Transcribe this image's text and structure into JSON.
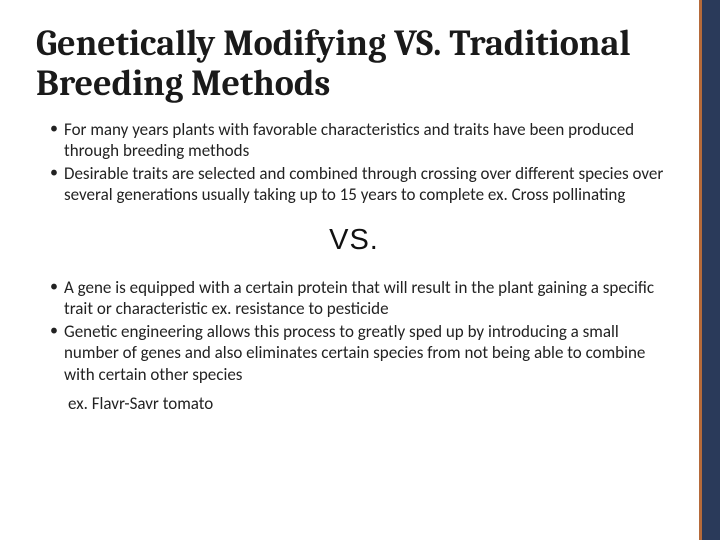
{
  "colors": {
    "side_bar": "#2a3a5a",
    "side_line": "#b56a3a",
    "title_color": "#1a1a1a",
    "body_text": "#222222",
    "background": "#ffffff"
  },
  "typography": {
    "title_font": "Cambria",
    "title_size_pt": 27,
    "title_weight": 700,
    "body_font": "Calibri",
    "body_size_pt": 13,
    "vs_font": "Arial",
    "vs_size_pt": 22
  },
  "title": "Genetically Modifying VS. Traditional Breeding Methods",
  "top_bullets": [
    "For many years plants with favorable characteristics and traits  have been produced through breeding methods",
    "Desirable traits are selected and combined through crossing over different species over several generations usually taking up to 15 years to complete ex. Cross pollinating"
  ],
  "divider_text": "VS.",
  "bottom_bullets": [
    "A gene is equipped with a certain protein that will result in the plant gaining a specific trait or characteristic ex. resistance to pesticide",
    "Genetic engineering allows this process to greatly sped up by introducing a small number of genes and also eliminates certain species from not being able to combine with certain other species"
  ],
  "bottom_example": " ex. Flavr-Savr tomato"
}
